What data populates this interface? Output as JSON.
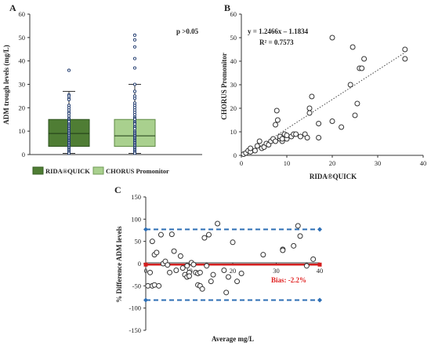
{
  "panels": {
    "a": {
      "letter": "A"
    },
    "b": {
      "letter": "B"
    },
    "c": {
      "letter": "C"
    }
  },
  "colors": {
    "rida_box": "#4f7d34",
    "chorus_box": "#a9d08e",
    "point_stroke": "#1f3a6e",
    "bias_line": "#d42020",
    "limit_line": "#2e6fb5",
    "text": "#222222"
  },
  "chart_data": [
    {
      "type": "box",
      "ylabel": "ADM trough levels (mg/L)",
      "ylim": [
        0,
        60
      ],
      "yticks": [
        0,
        10,
        20,
        30,
        40,
        50,
        60
      ],
      "annotations": [
        "p >0.05"
      ],
      "legend_position": "bottom",
      "series": [
        {
          "name": "RIDA®QUICK",
          "whisker_low": 0.5,
          "q1": 3.5,
          "median": 9,
          "q3": 15,
          "whisker_high": 27,
          "points": [
            36,
            25.5,
            25,
            24,
            23.5,
            21,
            20,
            19,
            18,
            17.5,
            16.5,
            15.5,
            15,
            14.5,
            14,
            13,
            12.5,
            12,
            11.5,
            11,
            10.5,
            10,
            9.5,
            9,
            8.5,
            8,
            7.5,
            7,
            6.5,
            6,
            5.5,
            5,
            4.5,
            4,
            3.5,
            3,
            2.5,
            2,
            1.5,
            1,
            0.5
          ]
        },
        {
          "name": "CHORUS Promonitor",
          "whisker_low": 0.5,
          "q1": 3.5,
          "median": 8,
          "q3": 15,
          "whisker_high": 30,
          "points": [
            51,
            49,
            46,
            41,
            37,
            30,
            27,
            25,
            24,
            22,
            21,
            20,
            19,
            18,
            17,
            16,
            15.5,
            15,
            14,
            13.5,
            13,
            12,
            11.5,
            11,
            10,
            9.5,
            9,
            8.5,
            8,
            7.5,
            7,
            6.5,
            6,
            5.5,
            5,
            4.5,
            4,
            3.5,
            3,
            2.5,
            2,
            1.5,
            1,
            0.5
          ]
        }
      ]
    },
    {
      "type": "scatter",
      "xlabel": "RIDA®QUICK",
      "ylabel": "CHORUS Promonitor",
      "xlim": [
        0,
        40
      ],
      "ylim": [
        0,
        60
      ],
      "xticks": [
        0,
        10,
        20,
        30,
        40
      ],
      "yticks": [
        0,
        10,
        20,
        30,
        40,
        50,
        60
      ],
      "annotations": [
        "y = 1.2466x – 1.1834",
        "R² = 0.7573"
      ],
      "trendline": {
        "slope": 1.2466,
        "intercept": -1.1834,
        "x_range": [
          1.5,
          36
        ]
      },
      "points": [
        [
          0.5,
          0.5
        ],
        [
          1,
          1
        ],
        [
          1.5,
          2
        ],
        [
          2,
          1.5
        ],
        [
          2,
          3
        ],
        [
          3,
          2
        ],
        [
          3.5,
          4
        ],
        [
          4,
          6
        ],
        [
          4.5,
          3
        ],
        [
          5,
          3.5
        ],
        [
          5.5,
          5
        ],
        [
          6,
          4.5
        ],
        [
          6.5,
          6
        ],
        [
          7,
          7
        ],
        [
          7.5,
          6
        ],
        [
          7.5,
          13
        ],
        [
          7.8,
          19
        ],
        [
          8,
          15
        ],
        [
          8.5,
          7
        ],
        [
          8.5,
          8
        ],
        [
          9,
          6
        ],
        [
          9,
          7
        ],
        [
          9.5,
          9
        ],
        [
          10,
          7
        ],
        [
          10,
          8.5
        ],
        [
          11,
          8
        ],
        [
          11.5,
          9
        ],
        [
          12,
          9
        ],
        [
          13,
          8
        ],
        [
          14,
          9
        ],
        [
          14.5,
          7.5
        ],
        [
          15,
          18
        ],
        [
          15,
          20
        ],
        [
          15.5,
          25
        ],
        [
          17,
          7.5
        ],
        [
          17,
          13.5
        ],
        [
          20,
          50
        ],
        [
          20,
          14.5
        ],
        [
          22,
          12
        ],
        [
          24,
          30
        ],
        [
          24.5,
          46
        ],
        [
          25,
          17
        ],
        [
          25.5,
          22
        ],
        [
          26,
          37
        ],
        [
          26.5,
          37
        ],
        [
          27,
          41
        ],
        [
          36,
          41
        ],
        [
          36,
          45
        ]
      ]
    },
    {
      "type": "scatter",
      "xlabel": "Average mg/L",
      "ylabel": "% Difference ADM levels",
      "xlim": [
        0,
        40
      ],
      "ylim": [
        -150,
        150
      ],
      "xticks": [
        0,
        10,
        20,
        30,
        40
      ],
      "yticks": [
        -150,
        -100,
        -50,
        0,
        50,
        100,
        150
      ],
      "annotations": [
        "Bias: -2.2%"
      ],
      "bias": -2.2,
      "upper_limit": 77,
      "lower_limit": -82,
      "points": [
        [
          0.5,
          -50
        ],
        [
          1,
          -20
        ],
        [
          1.5,
          50
        ],
        [
          1.5,
          -50
        ],
        [
          2,
          20
        ],
        [
          2,
          -48
        ],
        [
          2.5,
          25
        ],
        [
          3,
          -50
        ],
        [
          3.5,
          65
        ],
        [
          4,
          0
        ],
        [
          4.5,
          5
        ],
        [
          5,
          -3
        ],
        [
          5.5,
          -20
        ],
        [
          6,
          66
        ],
        [
          6.5,
          28
        ],
        [
          7,
          -15
        ],
        [
          8,
          17
        ],
        [
          8.5,
          -10
        ],
        [
          9,
          -25
        ],
        [
          9.5,
          -30
        ],
        [
          9.5,
          -5
        ],
        [
          10,
          -20
        ],
        [
          10,
          -28
        ],
        [
          10.5,
          2
        ],
        [
          11,
          -2
        ],
        [
          11.5,
          -20
        ],
        [
          12,
          -22
        ],
        [
          12,
          -48
        ],
        [
          12.5,
          -50
        ],
        [
          12.5,
          -20
        ],
        [
          13,
          -57
        ],
        [
          13.5,
          58
        ],
        [
          14,
          -5
        ],
        [
          14.5,
          65
        ],
        [
          15,
          -40
        ],
        [
          15.5,
          -25
        ],
        [
          16.5,
          90
        ],
        [
          18,
          -15
        ],
        [
          18.5,
          -65
        ],
        [
          19,
          -30
        ],
        [
          20,
          48
        ],
        [
          21,
          -40
        ],
        [
          22,
          -22
        ],
        [
          27,
          20
        ],
        [
          31.5,
          32
        ],
        [
          31.5,
          30
        ],
        [
          34,
          40
        ],
        [
          35,
          85
        ],
        [
          35.5,
          62
        ],
        [
          37,
          -5
        ],
        [
          38.5,
          10
        ]
      ]
    }
  ]
}
